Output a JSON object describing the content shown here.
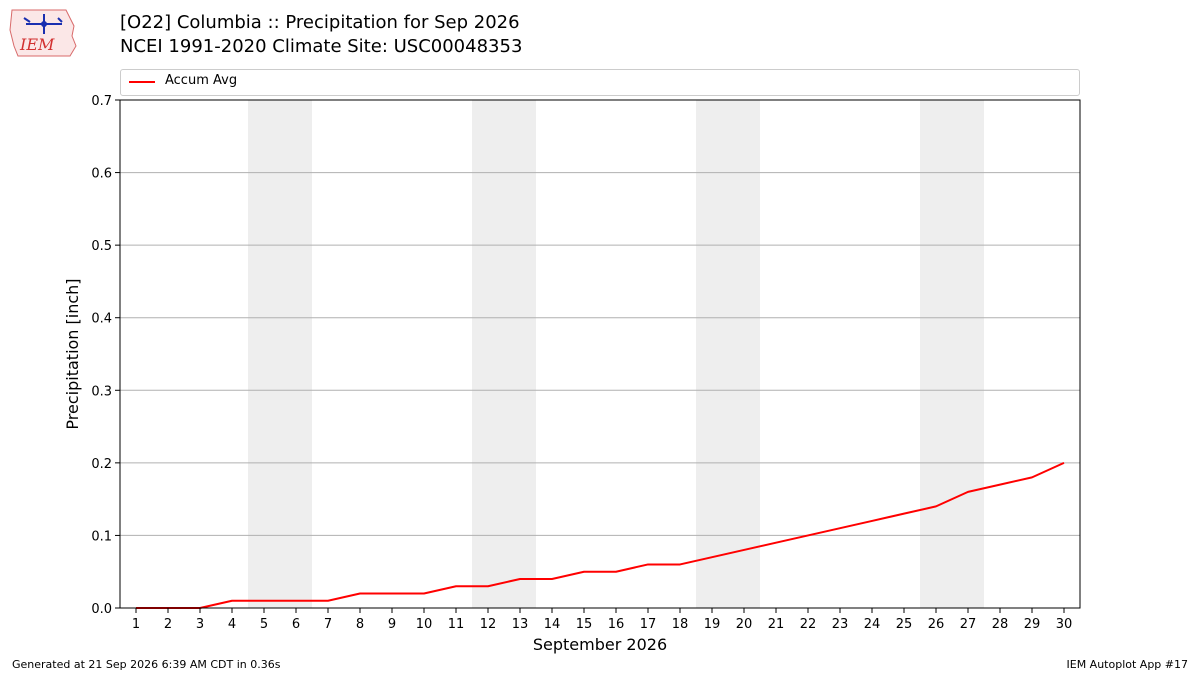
{
  "header": {
    "title_line1": "[O22] Columbia :: Precipitation for Sep 2026",
    "title_line2": "NCEI 1991-2020 Climate Site: USC00048353",
    "logo_text": "IEM"
  },
  "footer": {
    "generated": "Generated at 21 Sep 2026 6:39 AM CDT in 0.36s",
    "app": "IEM Autoplot App #17"
  },
  "chart_data": {
    "type": "line",
    "xlabel": "September 2026",
    "ylabel": "Precipitation [inch]",
    "xlim": [
      0.5,
      30.5
    ],
    "ylim": [
      0,
      0.7
    ],
    "yticks": [
      "0.0",
      "0.1",
      "0.2",
      "0.3",
      "0.4",
      "0.5",
      "0.6",
      "0.7"
    ],
    "x": [
      1,
      2,
      3,
      4,
      5,
      6,
      7,
      8,
      9,
      10,
      11,
      12,
      13,
      14,
      15,
      16,
      17,
      18,
      19,
      20,
      21,
      22,
      23,
      24,
      25,
      26,
      27,
      28,
      29,
      30
    ],
    "weekend_shading": [
      [
        4.5,
        6.5
      ],
      [
        11.5,
        13.5
      ],
      [
        18.5,
        20.5
      ],
      [
        25.5,
        27.5
      ]
    ],
    "grid": "horizontal",
    "legend": "top",
    "series": [
      {
        "name": "Accum Avg",
        "color": "#ff0000",
        "values": [
          0.0,
          0.0,
          0.0,
          0.01,
          0.01,
          0.01,
          0.01,
          0.02,
          0.02,
          0.02,
          0.03,
          0.03,
          0.04,
          0.04,
          0.05,
          0.05,
          0.06,
          0.06,
          0.07,
          0.08,
          0.09,
          0.1,
          0.11,
          0.12,
          0.13,
          0.14,
          0.16,
          0.17,
          0.18,
          0.2
        ]
      }
    ]
  }
}
